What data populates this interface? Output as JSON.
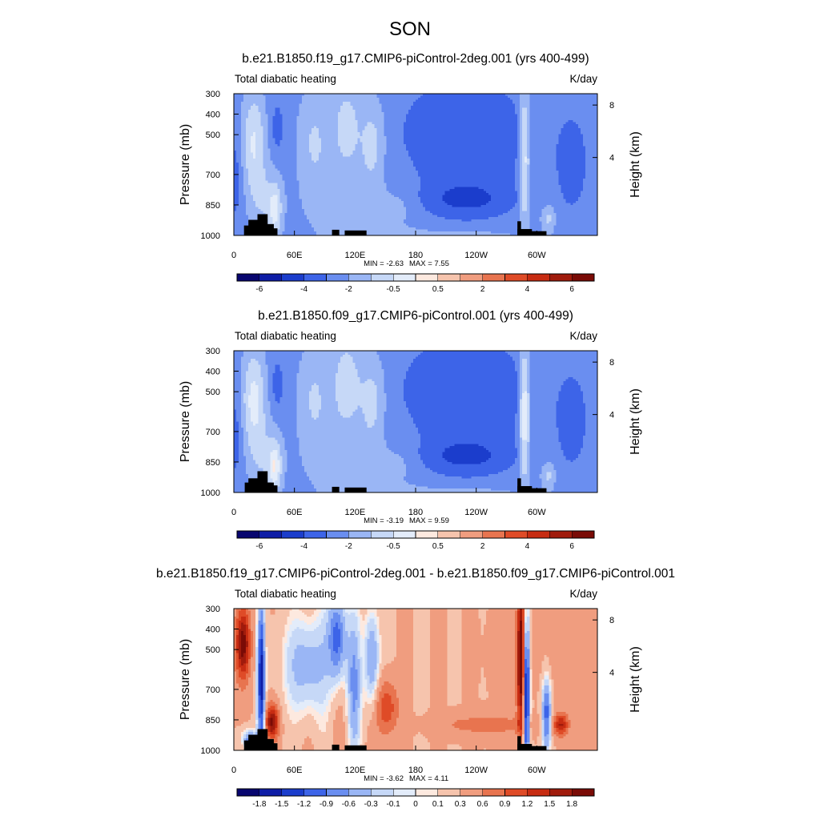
{
  "figure_title": "SON",
  "chart_data": [
    {
      "type": "heatmap",
      "title": "b.e21.B1850.f19_g17.CMIP6-piControl-2deg.001 (yrs 400-499)",
      "left_label": "Total diabatic heating",
      "right_label": "K/day",
      "ylabel": "Pressure (mb)",
      "y2label": "Height (km)",
      "xticks": [
        "0",
        "60E",
        "120E",
        "180",
        "120W",
        "60W"
      ],
      "yticks": [
        "300",
        "400",
        "500",
        "700",
        "850",
        "1000"
      ],
      "y2ticks": [
        "8",
        "4"
      ],
      "min_label": "MIN =  -2.63",
      "max_label": "MAX =   7.55",
      "min": -2.63,
      "max": 7.55,
      "levels": [
        "-6",
        "-4",
        "-2",
        "-0.5",
        "0.5",
        "2",
        "4",
        "6"
      ],
      "colors": [
        "#08066f",
        "#0e1da6",
        "#1b3dcc",
        "#3d64e8",
        "#6a8ef0",
        "#9ab6f5",
        "#c6d8f7",
        "#e3ecfa",
        "#fde9df",
        "#f6c4ad",
        "#f09d7f",
        "#e8744f",
        "#df4b27",
        "#c72c12",
        "#a01b0c",
        "#7a0b06"
      ]
    },
    {
      "type": "heatmap",
      "title": "b.e21.B1850.f09_g17.CMIP6-piControl.001 (yrs 400-499)",
      "left_label": "Total diabatic heating",
      "right_label": "K/day",
      "ylabel": "Pressure (mb)",
      "y2label": "Height (km)",
      "xticks": [
        "0",
        "60E",
        "120E",
        "180",
        "120W",
        "60W"
      ],
      "yticks": [
        "300",
        "400",
        "500",
        "700",
        "850",
        "1000"
      ],
      "y2ticks": [
        "8",
        "4"
      ],
      "min_label": "MIN =  -3.19",
      "max_label": "MAX =   9.59",
      "min": -3.19,
      "max": 9.59,
      "levels": [
        "-6",
        "-4",
        "-2",
        "-0.5",
        "0.5",
        "2",
        "4",
        "6"
      ],
      "colors": [
        "#08066f",
        "#0e1da6",
        "#1b3dcc",
        "#3d64e8",
        "#6a8ef0",
        "#9ab6f5",
        "#c6d8f7",
        "#e3ecfa",
        "#fde9df",
        "#f6c4ad",
        "#f09d7f",
        "#e8744f",
        "#df4b27",
        "#c72c12",
        "#a01b0c",
        "#7a0b06"
      ]
    },
    {
      "type": "heatmap",
      "title": "b.e21.B1850.f19_g17.CMIP6-piControl-2deg.001 - b.e21.B1850.f09_g17.CMIP6-piControl.001",
      "left_label": "Total diabatic heating",
      "right_label": "K/day",
      "ylabel": "Pressure (mb)",
      "y2label": "Height (km)",
      "xticks": [
        "0",
        "60E",
        "120E",
        "180",
        "120W",
        "60W"
      ],
      "yticks": [
        "300",
        "400",
        "500",
        "700",
        "850",
        "1000"
      ],
      "y2ticks": [
        "8",
        "4"
      ],
      "min_label": "MIN =  -3.62",
      "max_label": "MAX =   4.11",
      "min": -3.62,
      "max": 4.11,
      "levels": [
        "-1.8",
        "-1.5",
        "-1.2",
        "-0.9",
        "-0.6",
        "-0.3",
        "-0.1",
        "0",
        "0.1",
        "0.3",
        "0.6",
        "0.9",
        "1.2",
        "1.5",
        "1.8"
      ],
      "colors": [
        "#08066f",
        "#0e1da6",
        "#1b3dcc",
        "#3d64e8",
        "#6a8ef0",
        "#9ab6f5",
        "#c6d8f7",
        "#e3ecfa",
        "#fde9df",
        "#f6c4ad",
        "#f09d7f",
        "#e8744f",
        "#df4b27",
        "#c72c12",
        "#a01b0c",
        "#7a0b06"
      ]
    }
  ]
}
